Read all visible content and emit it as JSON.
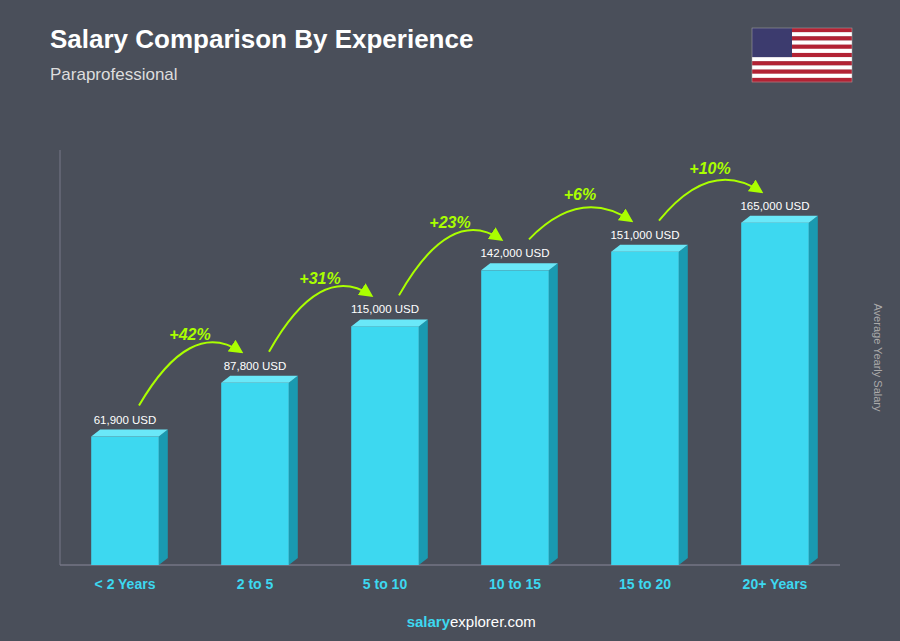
{
  "chart_data": {
    "type": "bar",
    "title": "Salary Comparison By Experience",
    "subtitle": "Paraprofessional",
    "ylabel": "Average Yearly Salary",
    "categories": [
      "< 2 Years",
      "2 to 5",
      "5 to 10",
      "10 to 15",
      "15 to 20",
      "20+ Years"
    ],
    "values": [
      61900,
      87800,
      115000,
      142000,
      151000,
      165000
    ],
    "value_labels": [
      "61,900 USD",
      "87,800 USD",
      "115,000 USD",
      "142,000 USD",
      "151,000 USD",
      "165,000 USD"
    ],
    "data_labels": true,
    "annotations": [
      "+42%",
      "+31%",
      "+23%",
      "+6%",
      "+10%"
    ],
    "footer": [
      "salary",
      "explorer.com"
    ],
    "color": "#3DD8F0",
    "ylim": [
      0,
      200000
    ],
    "tick_labels": "x",
    "grid": false
  }
}
